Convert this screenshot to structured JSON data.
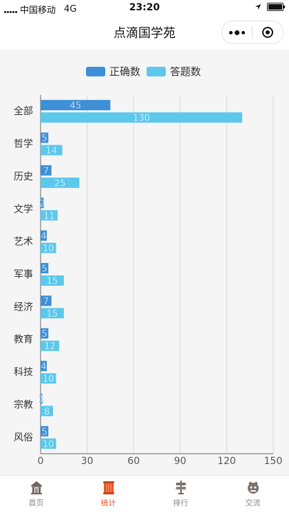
{
  "status_bar": {
    "carrier": "中国移动",
    "network": "4G",
    "time": "23:20"
  },
  "nav": {
    "title": "点滴国学苑"
  },
  "legend": [
    {
      "name": "正确数",
      "color": "#3d8fd6"
    },
    {
      "name": "答题数",
      "color": "#5bc8ec"
    }
  ],
  "chart_data": {
    "type": "bar",
    "orientation": "horizontal",
    "categories": [
      "全部",
      "哲学",
      "历史",
      "文学",
      "艺术",
      "军事",
      "经济",
      "教育",
      "科技",
      "宗教",
      "风俗"
    ],
    "series": [
      {
        "name": "正确数",
        "color": "#3d8fd6",
        "values": [
          45,
          5,
          7,
          2,
          4,
          5,
          7,
          5,
          4,
          1,
          5
        ]
      },
      {
        "name": "答题数",
        "color": "#5bc8ec",
        "values": [
          130,
          14,
          25,
          11,
          10,
          15,
          15,
          12,
          10,
          8,
          10
        ]
      }
    ],
    "xlim": [
      0,
      150
    ],
    "x_ticks": [
      0,
      30,
      60,
      90,
      120,
      150
    ],
    "grid": true,
    "legend_position": "top-center",
    "data_labels": true
  },
  "tabs": [
    {
      "label": "首页",
      "icon": "home-icon",
      "active": false
    },
    {
      "label": "统计",
      "icon": "stats-icon",
      "active": true
    },
    {
      "label": "排行",
      "icon": "ranking-icon",
      "active": false
    },
    {
      "label": "交流",
      "icon": "chat-icon",
      "active": false
    }
  ]
}
